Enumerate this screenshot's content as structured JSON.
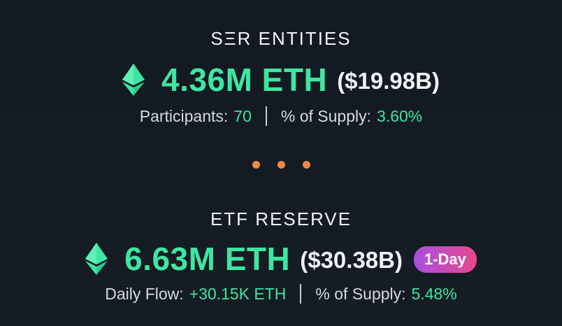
{
  "sections": [
    {
      "title": "SΞR ENTITIES",
      "amount": "4.36M ETH",
      "usd": "($19.98B)",
      "meta": [
        {
          "label": "Participants:",
          "value": "70"
        },
        {
          "label": "% of Supply:",
          "value": "3.60%"
        }
      ]
    },
    {
      "title": "ETF RESERVE",
      "amount": "6.63M ETH",
      "usd": "($30.38B)",
      "badge": "1-Day",
      "meta": [
        {
          "label": "Daily Flow:",
          "value": "+30.15K ETH"
        },
        {
          "label": "% of Supply:",
          "value": "5.48%"
        }
      ]
    }
  ],
  "colors": {
    "accent": "#3ee6a1",
    "background": "#151b22",
    "dots": "#f08a43",
    "badge_start": "#a84fe0",
    "badge_end": "#e8488c"
  },
  "icons": [
    "ethereum-icon",
    "ellipsis-dots"
  ]
}
